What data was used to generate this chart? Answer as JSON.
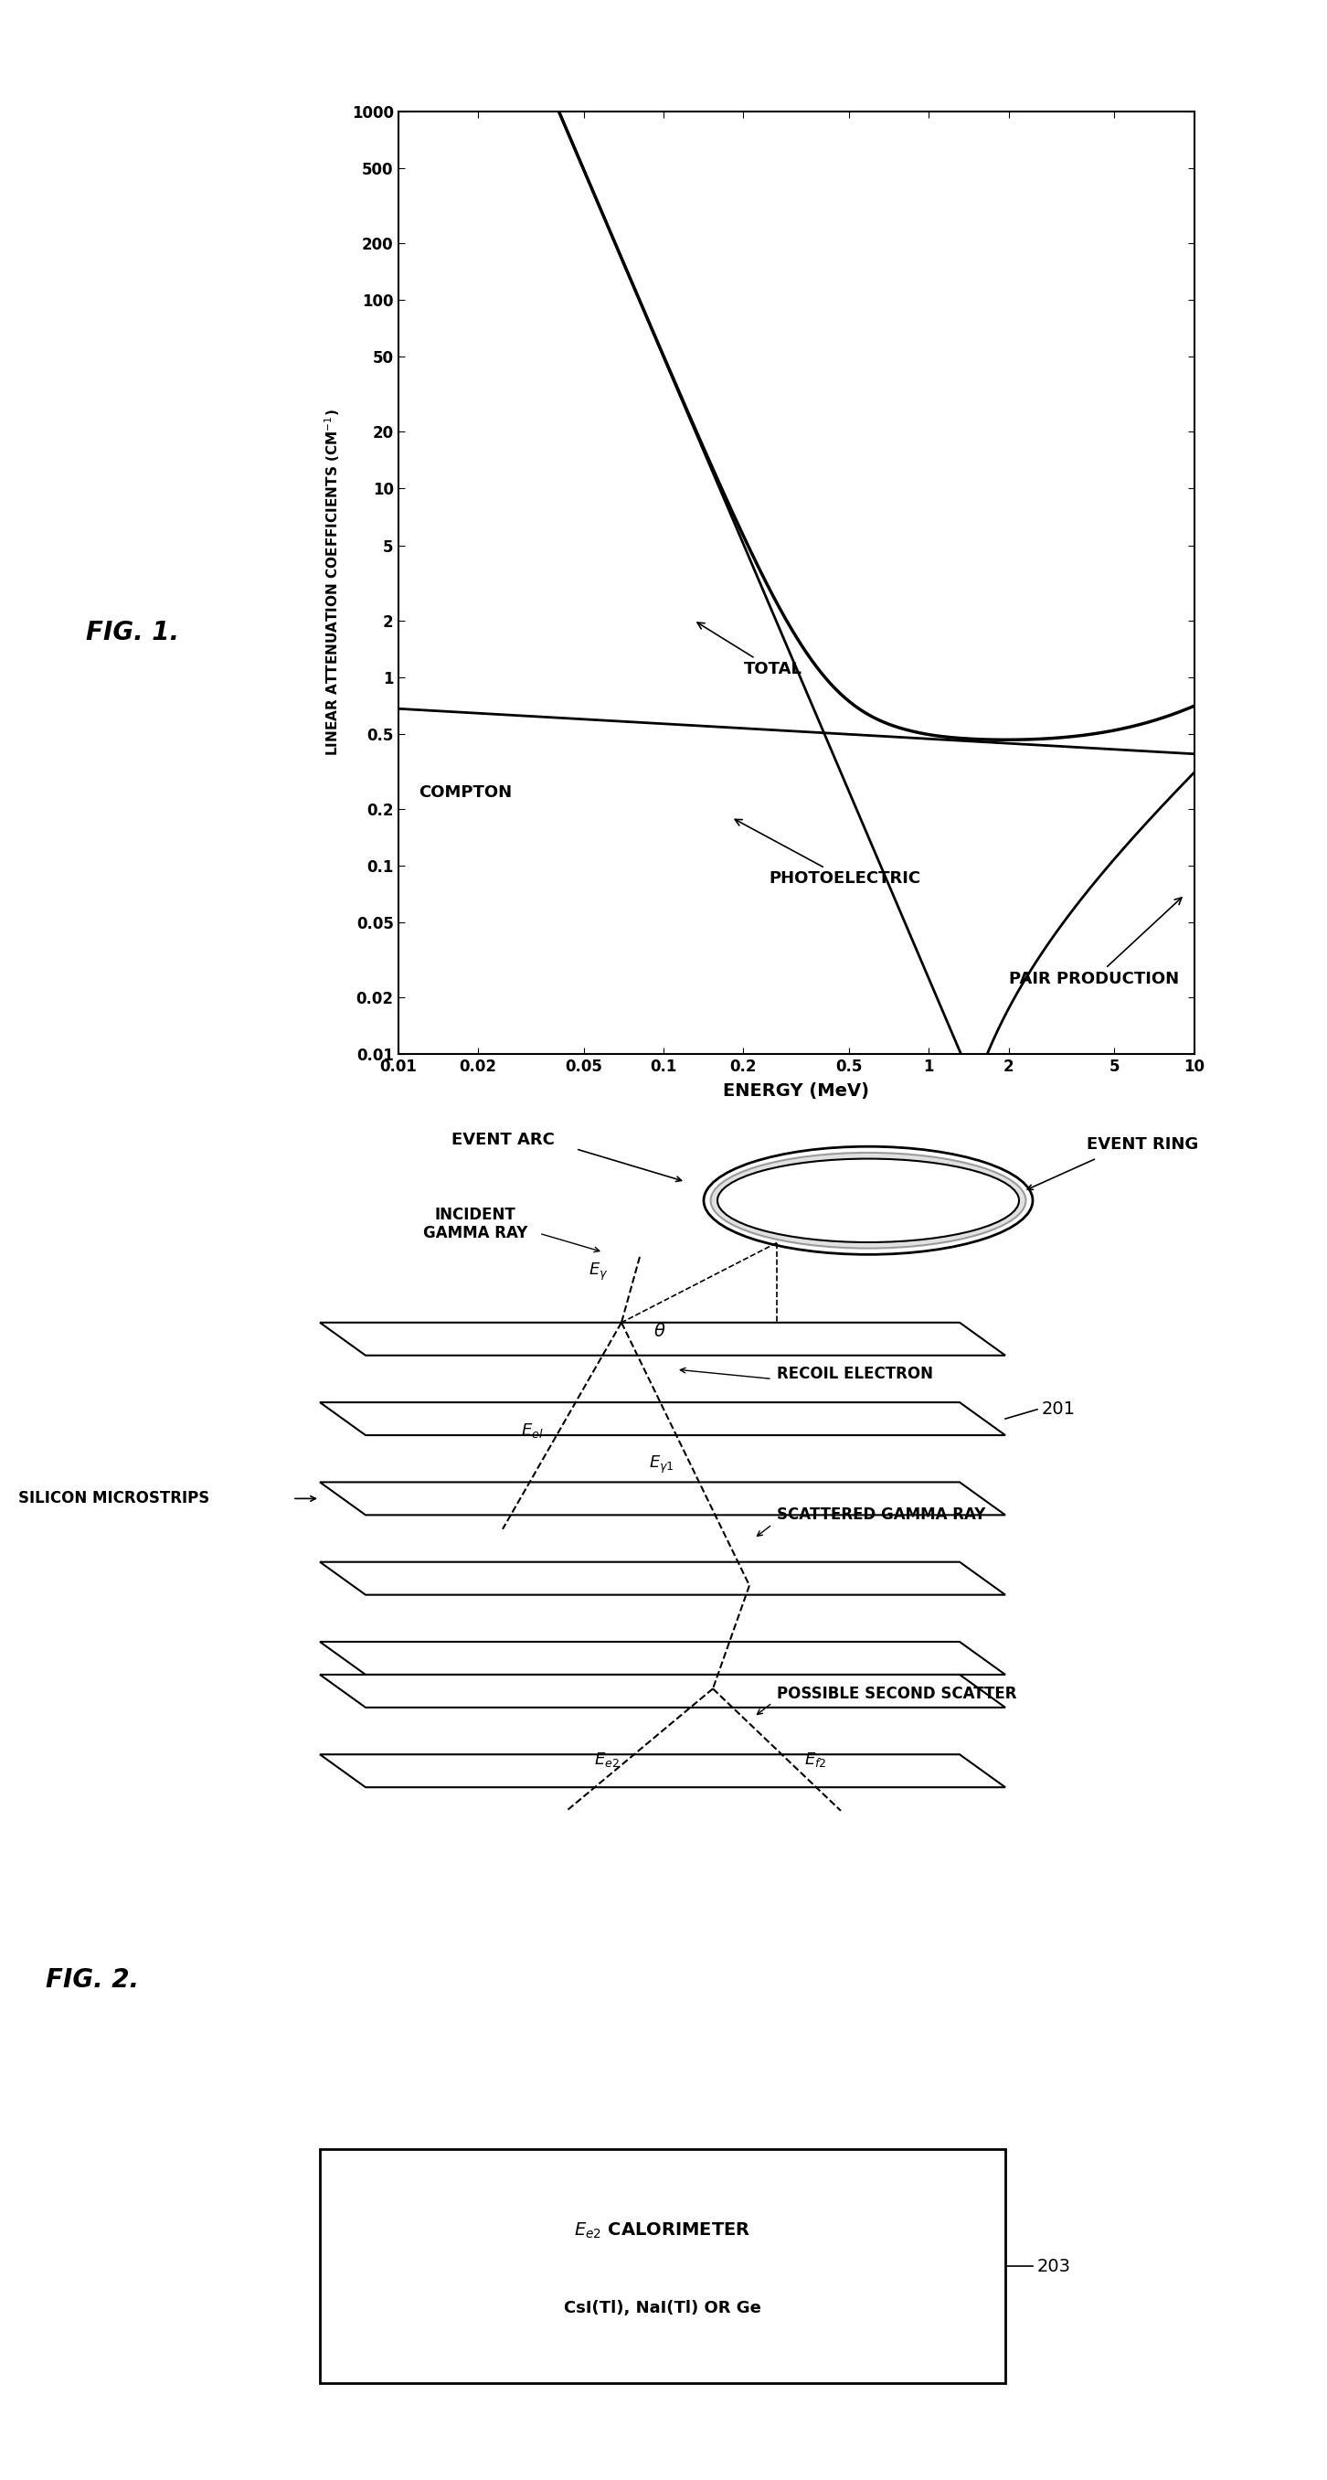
{
  "xlabel": "ENERGY (MeV)",
  "ylabel": "LINEAR ATTENUATION COEFFICIENTS (CM^-1)",
  "xtick_vals": [
    0.01,
    0.02,
    0.05,
    0.1,
    0.2,
    0.5,
    1,
    2,
    5,
    10
  ],
  "xtick_labels": [
    "0.01",
    "0.02",
    "0.05",
    "0.1",
    "0.2",
    "0.5",
    "1",
    "2",
    "5",
    "10"
  ],
  "ytick_vals": [
    0.01,
    0.02,
    0.05,
    0.1,
    0.2,
    0.5,
    1,
    2,
    5,
    10,
    20,
    50,
    100,
    200,
    500,
    1000
  ],
  "ytick_labels": [
    "0.01",
    "0.02",
    "0.05",
    "0.1",
    "0.2",
    "0.5",
    "1",
    "2",
    "5",
    "10",
    "20",
    "50",
    "100",
    "200",
    "500",
    "1000"
  ],
  "background_color": "#ffffff",
  "line_color": "#000000",
  "fig1_label": "FIG. 1.",
  "fig2_label": "FIG. 2.",
  "label_total": "TOTAL",
  "label_compton": "COMPTON",
  "label_photoelectric": "PHOTOELECTRIC",
  "label_pair": "PAIR PRODUCTION",
  "label_silicon": "SILICON MICROSTRIPS",
  "label_event_arc": "EVENT ARC",
  "label_event_ring": "EVENT RING",
  "label_incident": "INCIDENT\nGAMMA RAY",
  "label_recoil": "RECOIL ELECTRON",
  "label_scattered": "SCATTERED GAMMA RAY",
  "label_second": "POSSIBLE SECOND SCATTER",
  "label_201": "201",
  "label_203": "203",
  "label_cal1": "$\\mathit{E}_{e2}$ CALORIMETER",
  "label_cal2": "CsI(Tl), NaI(Tl) OR Ge"
}
